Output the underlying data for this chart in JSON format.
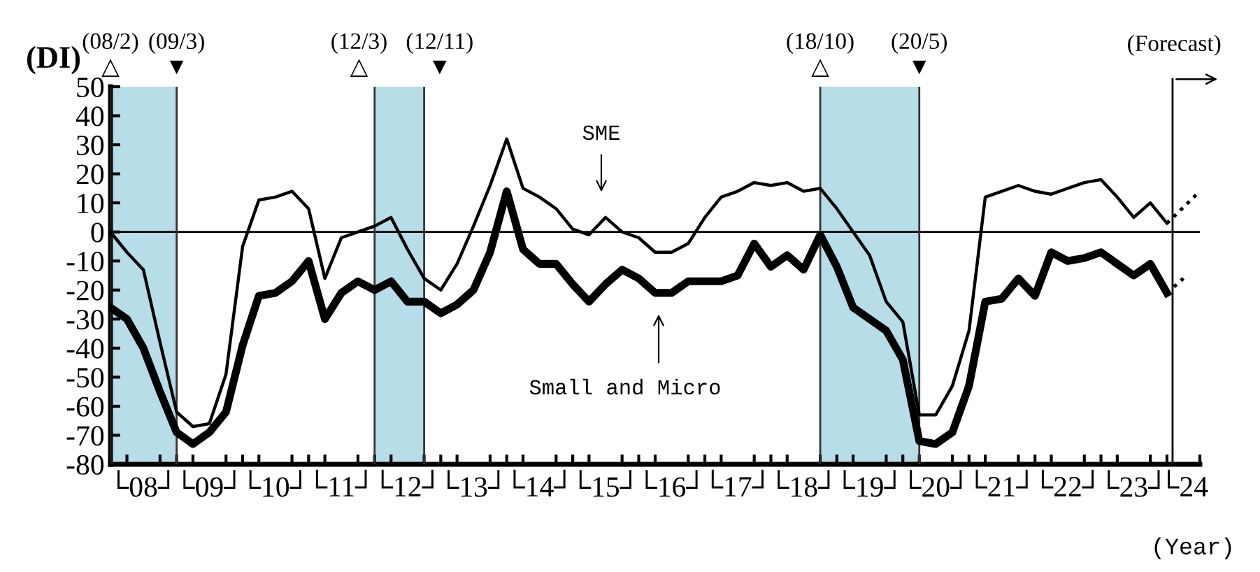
{
  "chart_data": {
    "type": "line",
    "xlabel": "(Year)",
    "ylabel": "(DI)",
    "xlim": [
      "2008-01",
      "2024-07"
    ],
    "ylim": [
      -80,
      50
    ],
    "yticks": [
      -80,
      -70,
      -60,
      -50,
      -40,
      -30,
      -20,
      -10,
      0,
      10,
      20,
      30,
      40,
      50
    ],
    "xticks": [
      {
        "value": "2008-07",
        "label": "└08┘"
      },
      {
        "value": "2009-07",
        "label": "└09┘"
      },
      {
        "value": "2010-07",
        "label": "└10┘"
      },
      {
        "value": "2011-07",
        "label": "└11┘"
      },
      {
        "value": "2012-07",
        "label": "└12┘"
      },
      {
        "value": "2013-07",
        "label": "└13┘"
      },
      {
        "value": "2014-07",
        "label": "└14┘"
      },
      {
        "value": "2015-07",
        "label": "└15┘"
      },
      {
        "value": "2016-07",
        "label": "└16┘"
      },
      {
        "value": "2017-07",
        "label": "└17┘"
      },
      {
        "value": "2018-07",
        "label": "└18┘"
      },
      {
        "value": "2019-07",
        "label": "└19┘"
      },
      {
        "value": "2020-07",
        "label": "└20┘"
      },
      {
        "value": "2021-07",
        "label": "└21┘"
      },
      {
        "value": "2022-07",
        "label": "└22┘"
      },
      {
        "value": "2023-07",
        "label": "└23┘"
      },
      {
        "value": "2024-04",
        "label": "└24"
      }
    ],
    "grid": false,
    "legend": false,
    "marker": "none",
    "series": [
      {
        "color": "#000000",
        "line_style": "solid",
        "x": [
          "2008-01",
          "2008-04",
          "2008-07",
          "2008-10",
          "2009-01",
          "2009-04",
          "2009-07",
          "2009-10",
          "2010-01",
          "2010-04",
          "2010-07",
          "2010-10",
          "2011-01",
          "2011-04",
          "2011-07",
          "2011-10",
          "2012-01",
          "2012-04",
          "2012-07",
          "2012-10",
          "2013-01",
          "2013-04",
          "2013-07",
          "2013-10",
          "2014-01",
          "2014-04",
          "2014-07",
          "2014-10",
          "2015-01",
          "2015-04",
          "2015-07",
          "2015-10",
          "2016-01",
          "2016-04",
          "2016-07",
          "2016-10",
          "2017-01",
          "2017-04",
          "2017-07",
          "2017-10",
          "2018-01",
          "2018-04",
          "2018-07",
          "2018-10",
          "2019-01",
          "2019-04",
          "2019-07",
          "2019-10",
          "2020-01",
          "2020-04",
          "2020-07",
          "2020-10",
          "2021-01",
          "2021-04",
          "2021-07",
          "2021-10",
          "2022-01",
          "2022-04",
          "2022-07",
          "2022-10",
          "2023-01",
          "2023-04",
          "2023-07",
          "2023-10",
          "2024-01"
        ],
        "values": [
          0,
          -7,
          -13,
          -38,
          -62,
          -67,
          -66,
          -49,
          -5,
          11,
          12,
          14,
          8,
          -16,
          -2,
          0,
          2,
          5,
          -6,
          -16,
          -20,
          -11,
          2,
          16,
          32,
          15,
          12,
          8,
          1,
          -1,
          5,
          0,
          -2,
          -7,
          -7,
          -4,
          5,
          12,
          14,
          17,
          16,
          17,
          14,
          15,
          8,
          0,
          -8,
          -24,
          -31,
          -63,
          -63,
          -53,
          -34,
          12,
          14,
          16,
          14,
          13,
          15,
          17,
          18,
          12,
          5,
          10,
          3
        ]
      },
      {
        "color": "#000000",
        "line_style": "solid",
        "x": [
          "2008-01",
          "2008-04",
          "2008-07",
          "2008-10",
          "2009-01",
          "2009-04",
          "2009-07",
          "2009-10",
          "2010-01",
          "2010-04",
          "2010-07",
          "2010-10",
          "2011-01",
          "2011-04",
          "2011-07",
          "2011-10",
          "2012-01",
          "2012-04",
          "2012-07",
          "2012-10",
          "2013-01",
          "2013-04",
          "2013-07",
          "2013-10",
          "2014-01",
          "2014-04",
          "2014-07",
          "2014-10",
          "2015-01",
          "2015-04",
          "2015-07",
          "2015-10",
          "2016-01",
          "2016-04",
          "2016-07",
          "2016-10",
          "2017-01",
          "2017-04",
          "2017-07",
          "2017-10",
          "2018-01",
          "2018-04",
          "2018-07",
          "2018-10",
          "2019-01",
          "2019-04",
          "2019-07",
          "2019-10",
          "2020-01",
          "2020-04",
          "2020-07",
          "2020-10",
          "2021-01",
          "2021-04",
          "2021-07",
          "2021-10",
          "2022-01",
          "2022-04",
          "2022-07",
          "2022-10",
          "2023-01",
          "2023-04",
          "2023-07",
          "2023-10",
          "2024-01"
        ],
        "values": [
          -26,
          -30,
          -40,
          -55,
          -69,
          -73,
          -69,
          -62,
          -39,
          -22,
          -21,
          -17,
          -10,
          -30,
          -21,
          -17,
          -20,
          -17,
          -24,
          -24,
          -28,
          -25,
          -20,
          -7,
          14,
          -6,
          -11,
          -11,
          -18,
          -24,
          -18,
          -13,
          -16,
          -21,
          -21,
          -17,
          -17,
          -17,
          -15,
          -4,
          -12,
          -8,
          -13,
          -1,
          -12,
          -26,
          -30,
          -34,
          -44,
          -72,
          -73,
          -69,
          -53,
          -24,
          -23,
          -16,
          -22,
          -7,
          -10,
          -9,
          -7,
          -11,
          -15,
          -11,
          -21
        ]
      },
      {
        "color": "#000000",
        "line_style": "dotted",
        "x": [
          "2024-01",
          "2024-07"
        ],
        "values": [
          3,
          14
        ]
      },
      {
        "color": "#000000",
        "line_style": "dotted",
        "x": [
          "2024-01",
          "2024-04"
        ],
        "values": [
          -21,
          -16
        ]
      }
    ],
    "bands": [
      {
        "axis": "x",
        "from": "2008-01",
        "to": "2009-01",
        "color": "#b7dde8"
      },
      {
        "axis": "x",
        "from": "2012-01",
        "to": "2012-10",
        "color": "#b7dde8"
      },
      {
        "axis": "x",
        "from": "2018-10",
        "to": "2020-04",
        "color": "#b7dde8"
      }
    ],
    "ref_lines": [
      {
        "axis": "y",
        "value": 0,
        "color": "#000000"
      },
      {
        "axis": "x",
        "value": "2008-01",
        "label": "(08/2)\n△",
        "color": "#333333"
      },
      {
        "axis": "x",
        "value": "2009-01",
        "label": "(09/3)\n▼",
        "color": "#333333"
      },
      {
        "axis": "x",
        "value": "2012-01",
        "label": "(12/3)\n△",
        "color": "#333333"
      },
      {
        "axis": "x",
        "value": "2012-10",
        "label": "(12/11)\n▼",
        "color": "#333333"
      },
      {
        "axis": "x",
        "value": "2018-10",
        "label": "(18/10)\n△",
        "color": "#333333"
      },
      {
        "axis": "x",
        "value": "2020-04",
        "label": "(20/5)\n▼",
        "color": "#333333"
      },
      {
        "axis": "x",
        "value": "2024-02",
        "label": "(Forecast)",
        "color": "#000000"
      }
    ],
    "annotations": [
      "SME",
      "Small and Micro"
    ]
  }
}
